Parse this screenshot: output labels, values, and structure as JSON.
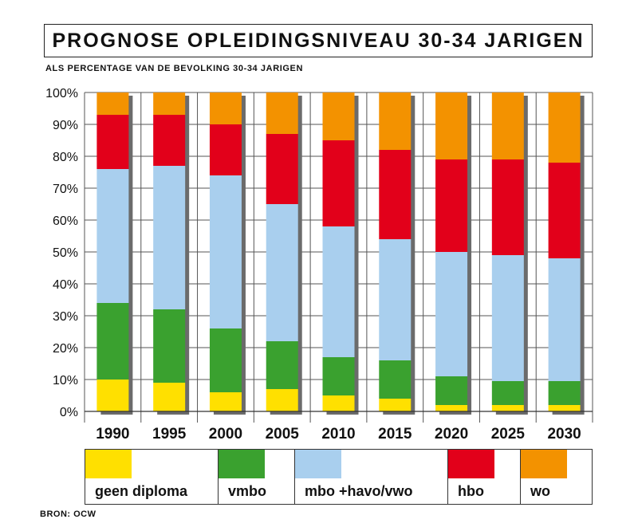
{
  "header": {
    "title": "PROGNOSE OPLEIDINGSNIVEAU 30-34 JARIGEN",
    "subtitle": "ALS PERCENTAGE VAN DE BEVOLKING 30-34 JARIGEN"
  },
  "footer": {
    "source": "BRON: OCW"
  },
  "chart_data": {
    "type": "bar",
    "stacked": true,
    "categories": [
      "1990",
      "1995",
      "2000",
      "2005",
      "2010",
      "2015",
      "2020",
      "2025",
      "2030"
    ],
    "series": [
      {
        "name": "geen diploma",
        "color": "#ffe000",
        "values": [
          10,
          9,
          6,
          7,
          5,
          4,
          2,
          2,
          2
        ]
      },
      {
        "name": "vmbo",
        "color": "#3aa12f",
        "values": [
          24,
          23,
          20,
          15,
          12,
          12,
          9,
          7.5,
          7.5
        ]
      },
      {
        "name": "mbo +havo/vwo",
        "color": "#a9cfee",
        "values": [
          42,
          45,
          48,
          43,
          41,
          38,
          39,
          39.5,
          38.5
        ]
      },
      {
        "name": "hbo",
        "color": "#e2001a",
        "values": [
          17,
          16,
          16,
          22,
          27,
          28,
          29,
          30,
          30
        ]
      },
      {
        "name": "wo",
        "color": "#f39200",
        "values": [
          7,
          7,
          10,
          13,
          15,
          18,
          21,
          21,
          22
        ]
      }
    ],
    "yticks": [
      "0%",
      "10%",
      "20%",
      "30%",
      "40%",
      "50%",
      "60%",
      "70%",
      "80%",
      "90%",
      "100%"
    ],
    "ylim": [
      0,
      100
    ],
    "grid": true,
    "legend_position": "bottom"
  }
}
